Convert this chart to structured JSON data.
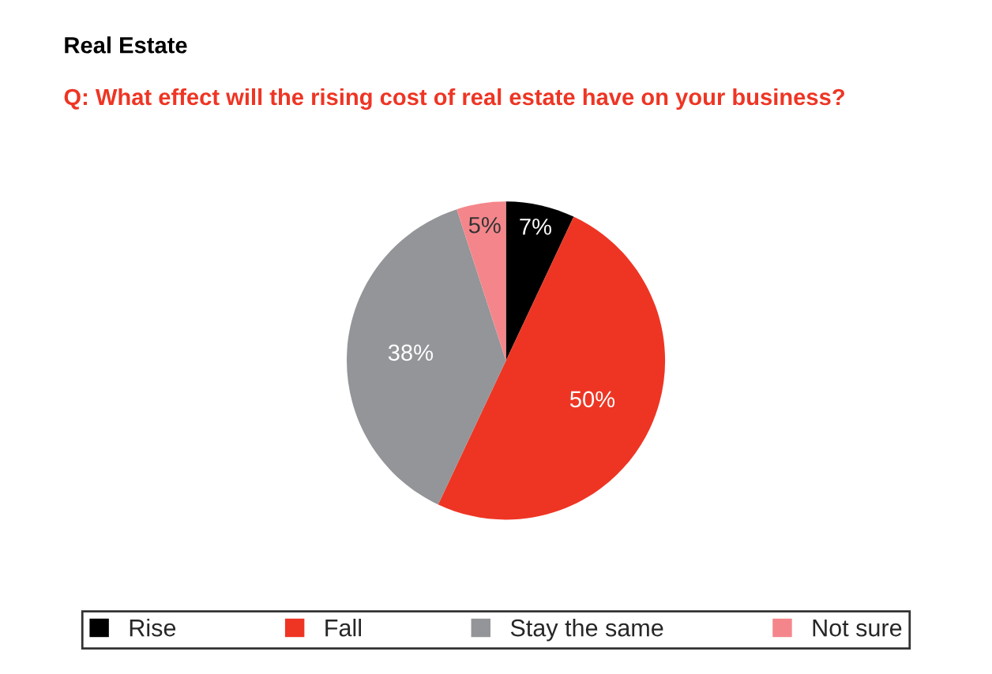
{
  "chart_data": {
    "type": "pie",
    "title": "Real Estate",
    "subtitle": "Q: What effect will the rising cost of real estate have on your business?",
    "categories": [
      "Rise",
      "Fall",
      "Stay the same",
      "Not sure"
    ],
    "values": [
      7,
      50,
      38,
      5
    ],
    "colors": [
      "#000000",
      "#ee3524",
      "#939598",
      "#f4868b"
    ],
    "value_labels": [
      "7%",
      "50%",
      "38%",
      "5%"
    ],
    "legend": "bottom"
  }
}
